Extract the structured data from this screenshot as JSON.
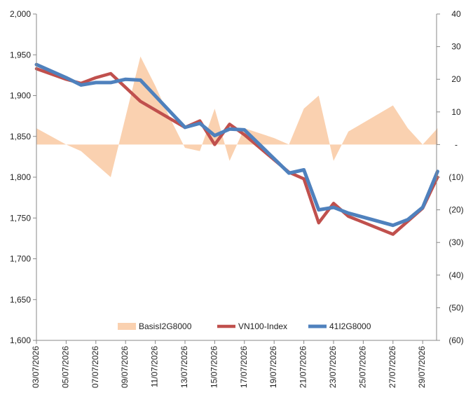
{
  "chart_data": {
    "type": "line",
    "title": "",
    "xlabel": "",
    "ylabel": "",
    "y2label": "",
    "ylim": [
      1600,
      2000
    ],
    "y2lim": [
      -60,
      40
    ],
    "y_ticks": [
      "1,600",
      "1,650",
      "1,700",
      "1,750",
      "1,800",
      "1,850",
      "1,900",
      "1,950",
      "2,000"
    ],
    "y2_ticks": [
      "(60)",
      "(50)",
      "(40)",
      "(30)",
      "(20)",
      "(10)",
      "-",
      "10",
      "20",
      "30",
      "40"
    ],
    "x_tick_labels": [
      "03/07/2026",
      "05/07/2026",
      "07/07/2026",
      "09/07/2026",
      "11/07/2026",
      "13/07/2026",
      "15/07/2026",
      "17/07/2026",
      "19/07/2026",
      "21/07/2026",
      "23/07/2026",
      "25/07/2026",
      "27/07/2026",
      "29/07/2026"
    ],
    "legend_position": "bottom-center",
    "grid": false,
    "series": [
      {
        "name": "BasisI2G8000",
        "kind": "area",
        "axis": "right",
        "color": "#FAD1B0",
        "points": [
          [
            "03/07/2026",
            5
          ],
          [
            "05/07/2026",
            0
          ],
          [
            "06/07/2026",
            -2
          ],
          [
            "07/07/2026",
            -6
          ],
          [
            "08/07/2026",
            -10
          ],
          [
            "10/07/2026",
            27
          ],
          [
            "11/07/2026",
            18
          ],
          [
            "12/07/2026",
            8
          ],
          [
            "13/07/2026",
            -1
          ],
          [
            "14/07/2026",
            -2
          ],
          [
            "15/07/2026",
            11
          ],
          [
            "16/07/2026",
            -5
          ],
          [
            "17/07/2026",
            5
          ],
          [
            "19/07/2026",
            2
          ],
          [
            "20/07/2026",
            0
          ],
          [
            "21/07/2026",
            11
          ],
          [
            "22/07/2026",
            15
          ],
          [
            "23/07/2026",
            -5
          ],
          [
            "24/07/2026",
            4
          ],
          [
            "27/07/2026",
            12
          ],
          [
            "28/07/2026",
            5
          ],
          [
            "29/07/2026",
            0
          ],
          [
            "30/07/2026",
            5
          ]
        ]
      },
      {
        "name": "VN100-Index",
        "kind": "line",
        "axis": "left",
        "color": "#C0504D",
        "points": [
          [
            "03/07/2026",
            1933
          ],
          [
            "05/07/2026",
            1920
          ],
          [
            "06/07/2026",
            1915
          ],
          [
            "07/07/2026",
            1922
          ],
          [
            "08/07/2026",
            1927
          ],
          [
            "09/07/2026",
            1910
          ],
          [
            "10/07/2026",
            1893
          ],
          [
            "13/07/2026",
            1861
          ],
          [
            "14/07/2026",
            1869
          ],
          [
            "15/07/2026",
            1840
          ],
          [
            "16/07/2026",
            1865
          ],
          [
            "17/07/2026",
            1852
          ],
          [
            "20/07/2026",
            1806
          ],
          [
            "21/07/2026",
            1798
          ],
          [
            "22/07/2026",
            1744
          ],
          [
            "23/07/2026",
            1768
          ],
          [
            "24/07/2026",
            1752
          ],
          [
            "27/07/2026",
            1730
          ],
          [
            "29/07/2026",
            1762
          ],
          [
            "30/07/2026",
            1800
          ]
        ]
      },
      {
        "name": "41I2G8000",
        "kind": "line",
        "axis": "left",
        "color": "#4F81BD",
        "points": [
          [
            "03/07/2026",
            1938
          ],
          [
            "05/07/2026",
            1922
          ],
          [
            "06/07/2026",
            1913
          ],
          [
            "07/07/2026",
            1916
          ],
          [
            "08/07/2026",
            1916
          ],
          [
            "09/07/2026",
            1920
          ],
          [
            "10/07/2026",
            1919
          ],
          [
            "13/07/2026",
            1861
          ],
          [
            "14/07/2026",
            1866
          ],
          [
            "15/07/2026",
            1851
          ],
          [
            "16/07/2026",
            1859
          ],
          [
            "17/07/2026",
            1858
          ],
          [
            "20/07/2026",
            1805
          ],
          [
            "21/07/2026",
            1809
          ],
          [
            "22/07/2026",
            1760
          ],
          [
            "23/07/2026",
            1763
          ],
          [
            "24/07/2026",
            1756
          ],
          [
            "27/07/2026",
            1741
          ],
          [
            "28/07/2026",
            1748
          ],
          [
            "29/07/2026",
            1763
          ],
          [
            "30/07/2026",
            1807
          ]
        ]
      }
    ]
  }
}
